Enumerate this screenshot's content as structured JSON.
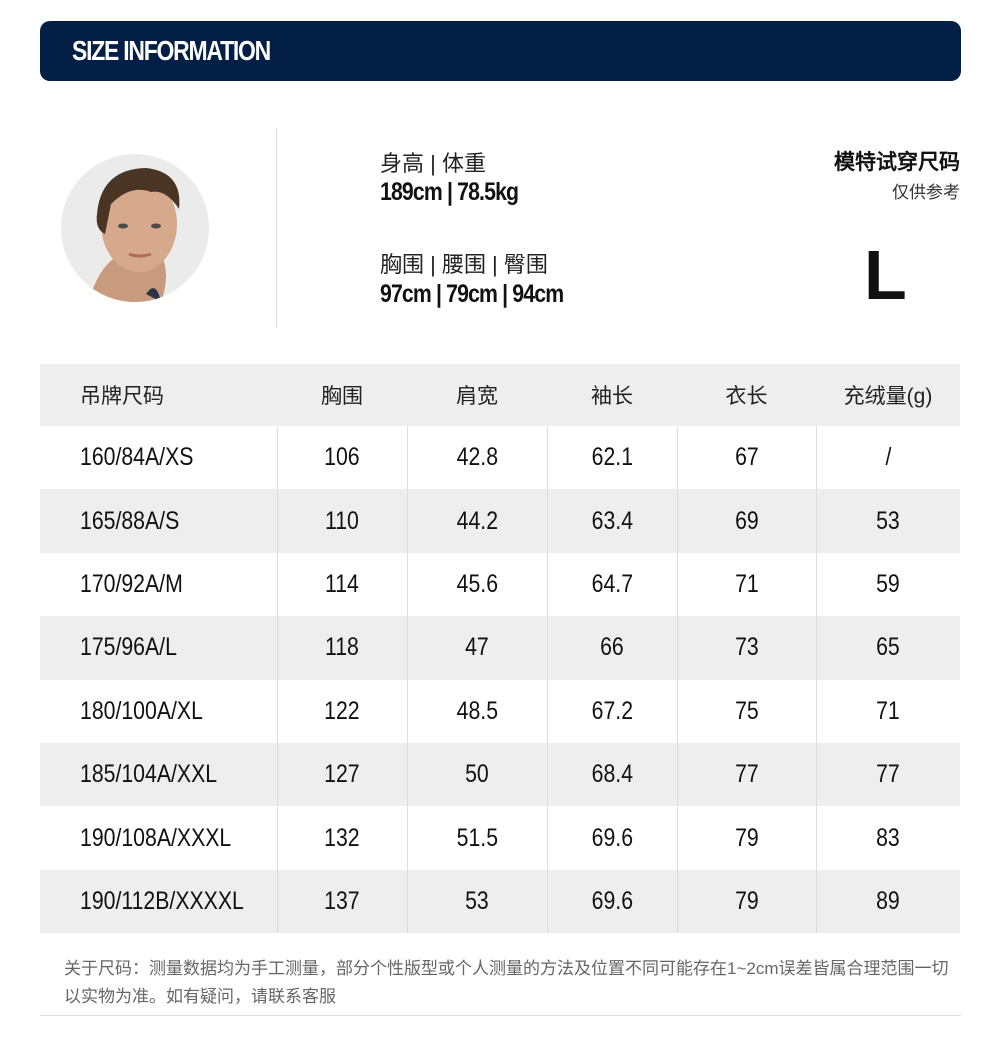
{
  "header": {
    "title": "SIZE INFORMATION",
    "color": "#041f45"
  },
  "model": {
    "height_weight_label": "身高 | 体重",
    "height_weight_value": "189cm | 78.5kg",
    "measurements_label": "胸围 | 腰围 | 臀围",
    "measurements_value": "97cm | 79cm | 94cm",
    "fit_title": "模特试穿尺码",
    "fit_subtitle": "仅供参考",
    "fit_size": "L"
  },
  "table": {
    "headers": [
      "吊牌尺码",
      "胸围",
      "肩宽",
      "袖长",
      "衣长",
      "充绒量(g)"
    ],
    "rows": [
      [
        "160/84A/XS",
        "106",
        "42.8",
        "62.1",
        "67",
        "/"
      ],
      [
        "165/88A/S",
        "110",
        "44.2",
        "63.4",
        "69",
        "53"
      ],
      [
        "170/92A/M",
        "114",
        "45.6",
        "64.7",
        "71",
        "59"
      ],
      [
        "175/96A/L",
        "118",
        "47",
        "66",
        "73",
        "65"
      ],
      [
        "180/100A/XL",
        "122",
        "48.5",
        "67.2",
        "75",
        "71"
      ],
      [
        "185/104A/XXL",
        "127",
        "50",
        "68.4",
        "77",
        "77"
      ],
      [
        "190/108A/XXXL",
        "132",
        "51.5",
        "69.6",
        "79",
        "83"
      ],
      [
        "190/112B/XXXXL",
        "137",
        "53",
        "69.6",
        "79",
        "89"
      ]
    ]
  },
  "note": "关于尺码：测量数据均为手工测量，部分个性版型或个人测量的方法及位置不同可能存在1~2cm误差皆属合理范围一切以实物为准。如有疑问，请联系客服"
}
